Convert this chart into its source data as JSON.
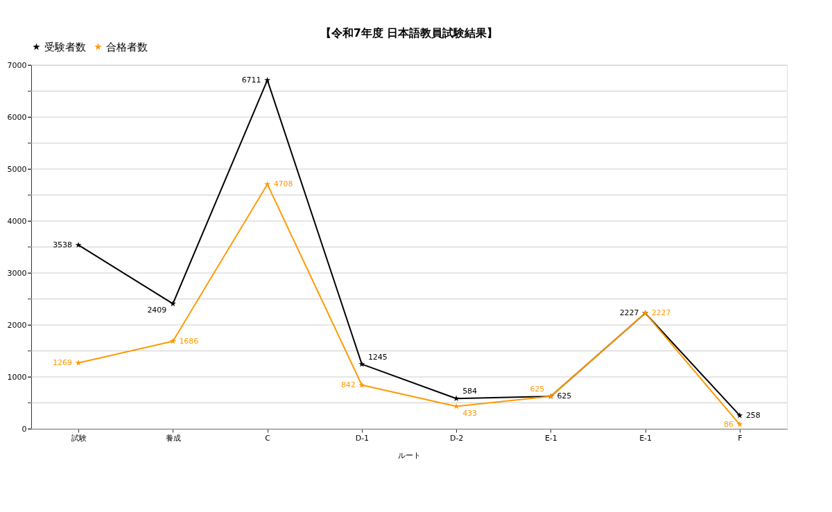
{
  "chart_data": {
    "type": "line",
    "title": "【令和7年度 日本語教員試験結果】",
    "xlabel": "ルート",
    "categories": [
      "試験",
      "養成",
      "C",
      "D-1",
      "D-2",
      "E-1",
      "E-1",
      "F"
    ],
    "series": [
      {
        "name": "受験者数",
        "color": "#000000",
        "values": [
          3538,
          2409,
          6711,
          1245,
          584,
          625,
          2227,
          258
        ]
      },
      {
        "name": "合格者数",
        "color": "#ff9900",
        "values": [
          1269,
          1686,
          4708,
          842,
          433,
          625,
          2227,
          86
        ]
      }
    ],
    "ylim": [
      0,
      7000
    ],
    "yticks": [
      0,
      {
        "value": 500,
        "label": null
      },
      1000,
      {
        "value": 1500,
        "label": null
      },
      2000,
      {
        "value": 2500,
        "label": null
      },
      3000,
      {
        "value": 3500,
        "label": null
      },
      4000,
      {
        "value": 4500,
        "label": null
      },
      5000,
      {
        "value": 5500,
        "label": null
      },
      6000,
      {
        "value": 6500,
        "label": null
      },
      7000
    ],
    "grid": "y",
    "legend": "top",
    "marker": "star",
    "line_style": "solid",
    "data_labels": true
  }
}
